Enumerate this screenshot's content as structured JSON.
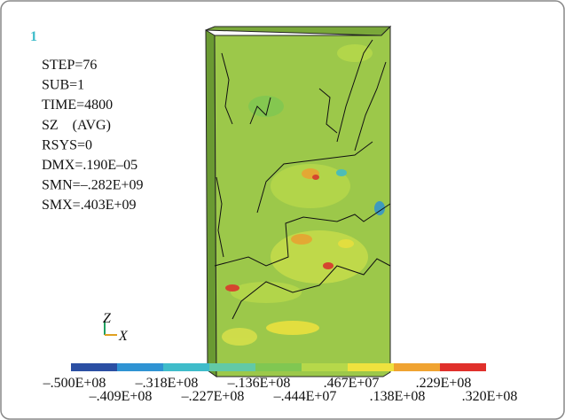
{
  "window_number": "1",
  "info": [
    "STEP=76",
    "SUB=1",
    "TIME=4800",
    "SZ    (AVG)",
    "RSYS=0",
    "DMX=.190E–05",
    "SMN=–.282E+09",
    "SMX=.403E+09"
  ],
  "triad": {
    "z": "Z",
    "x": "X"
  },
  "legend": {
    "colors": [
      "#2b4fa3",
      "#2f93d3",
      "#3fbcca",
      "#62c9a6",
      "#80c752",
      "#b6d84a",
      "#efe23e",
      "#f0a331",
      "#e0302b"
    ],
    "labels_top": [
      "–.500E+08",
      "–.318E+08",
      "–.136E+08",
      ".467E+07",
      ".229E+08"
    ],
    "labels_bottom": [
      "–.409E+08",
      "–.227E+08",
      "–.444E+07",
      ".138E+08",
      ".320E+08"
    ]
  }
}
